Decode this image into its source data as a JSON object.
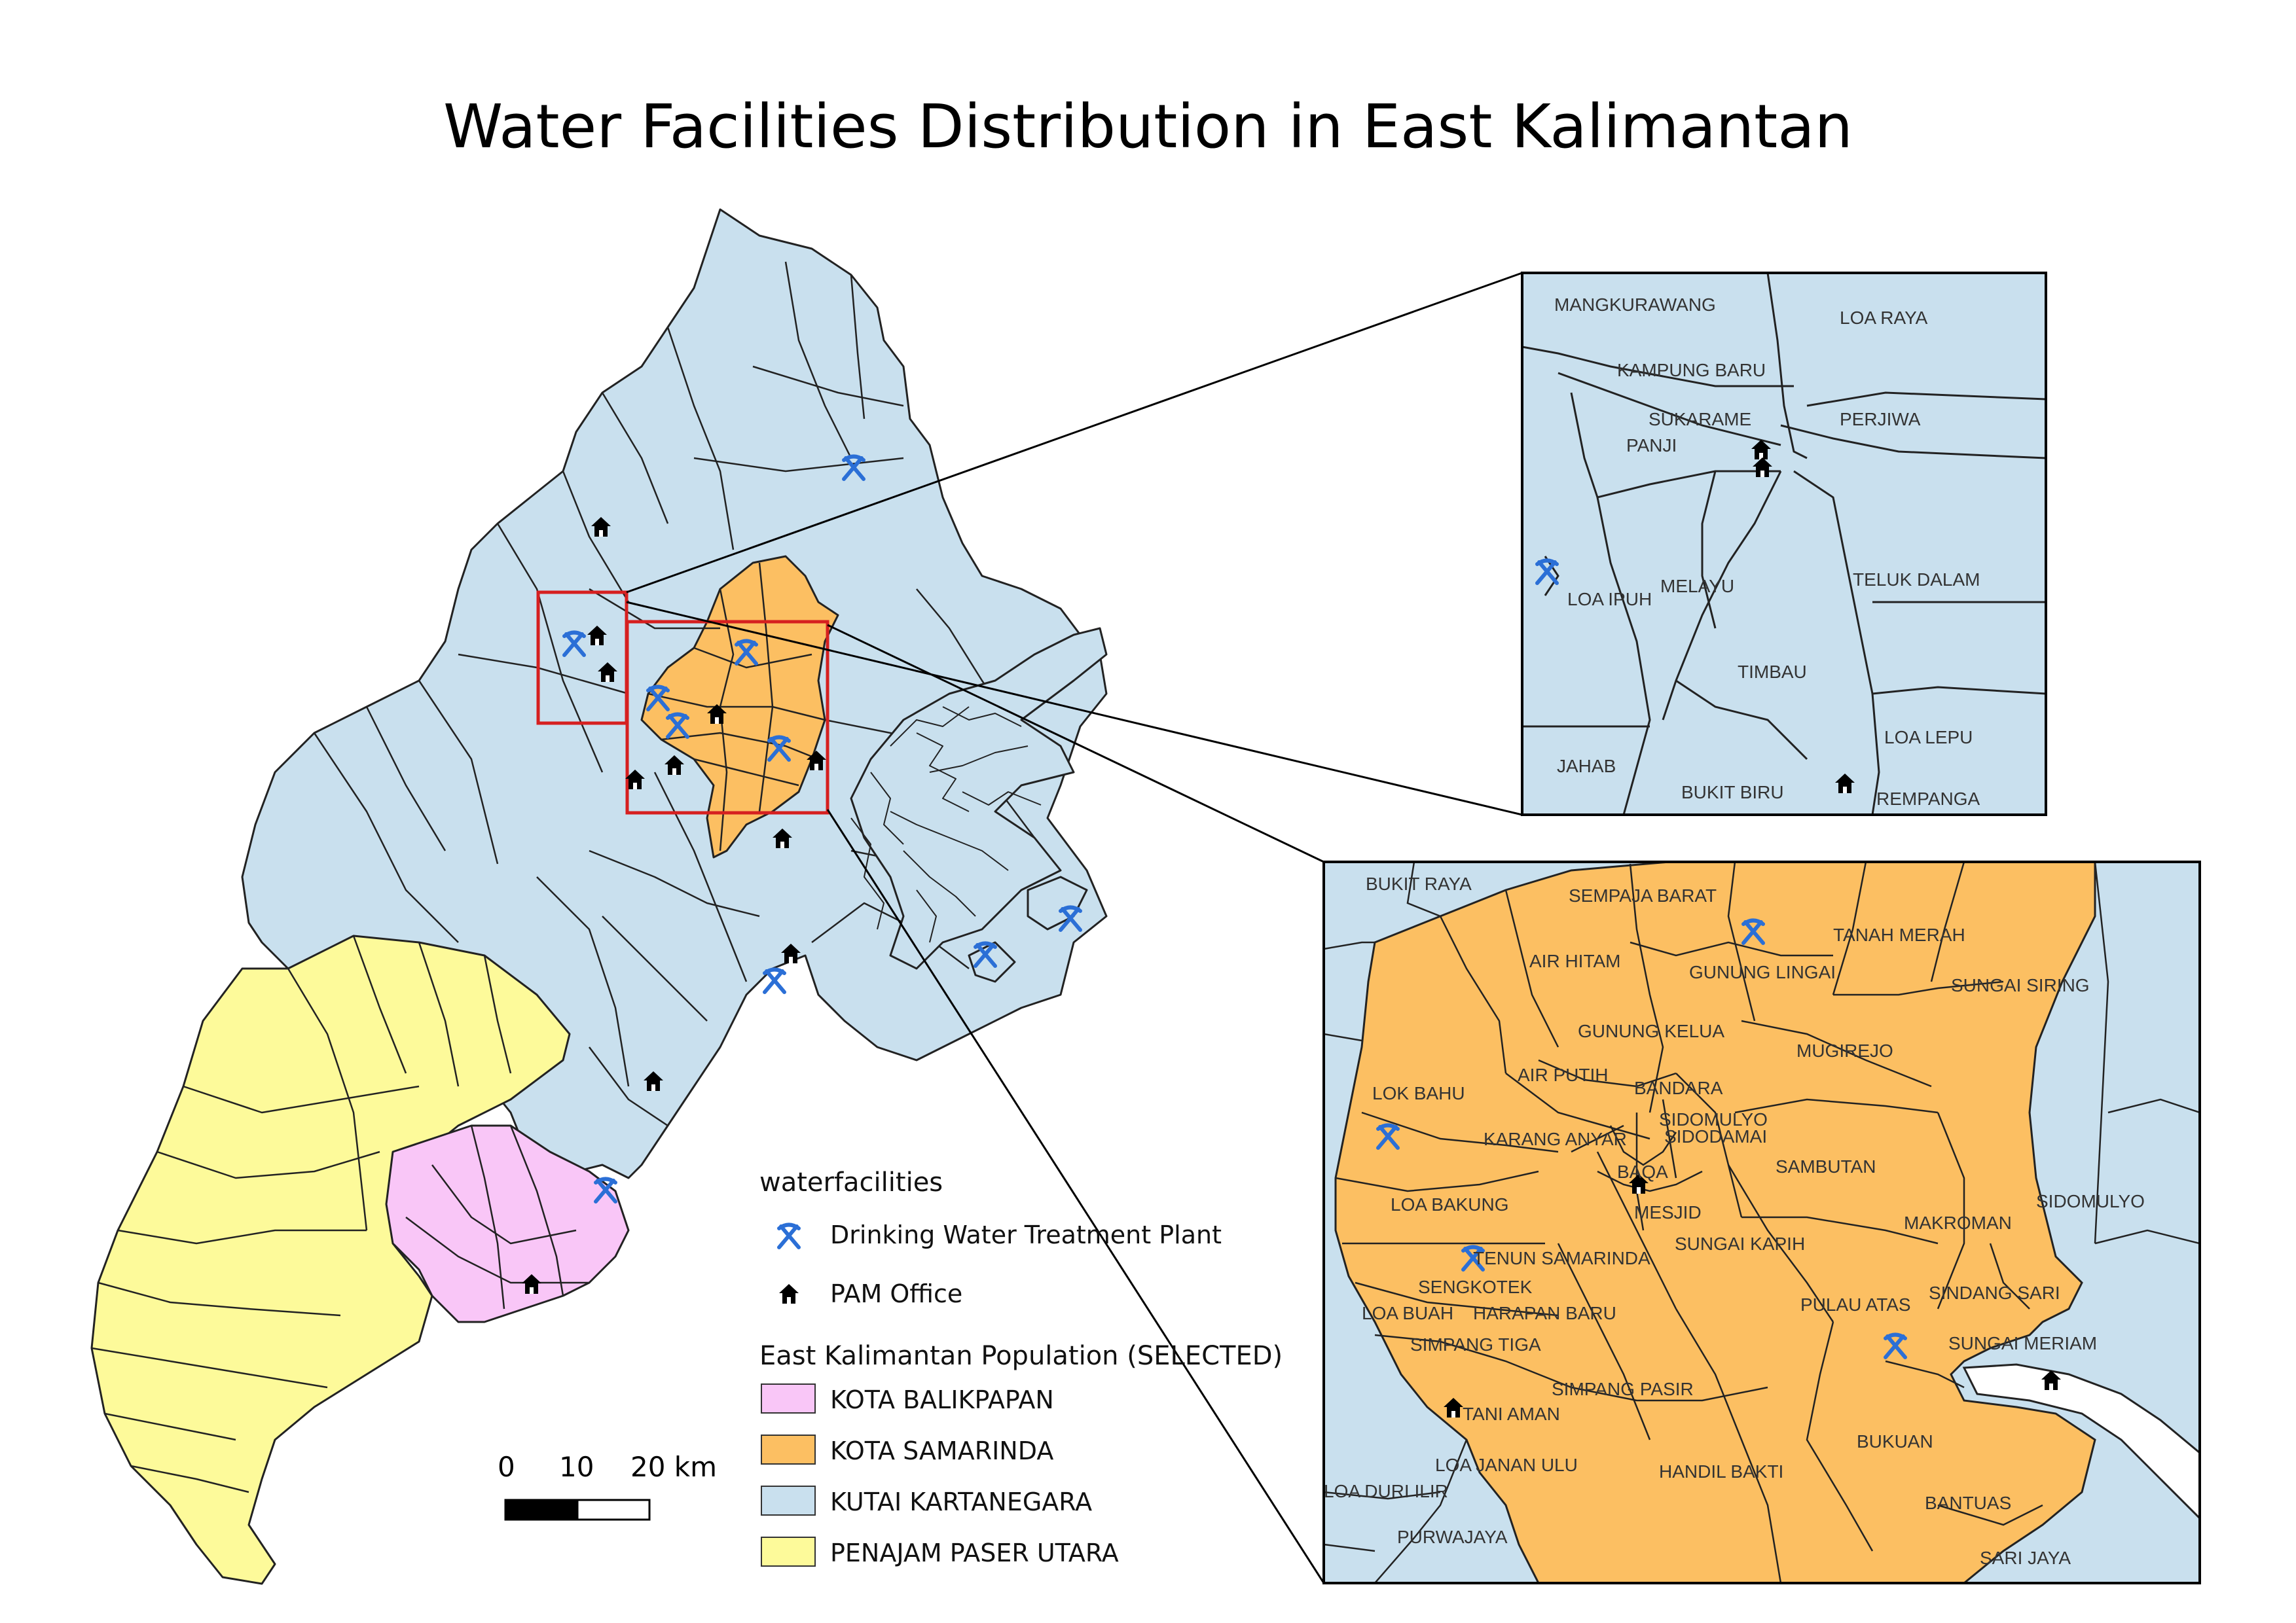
{
  "title": "Water Facilities Distribution in East Kalimantan",
  "colors": {
    "kota_balikpapan": "#f9c6f7",
    "kota_samarinda": "#fcbf62",
    "kutai_kartanegara": "#c9e0ee",
    "penajam_paser_utara": "#fdfa9a",
    "facility_icon": "#2b6fd6",
    "inset_frame": "#d62020"
  },
  "legend": {
    "facilities_heading": "waterfacilities",
    "treatment_plant": "Drinking Water Treatment Plant",
    "pam_office": "PAM Office",
    "population_heading": "East Kalimantan Population (SELECTED)",
    "classes": [
      "KOTA BALIKPAPAN",
      "KOTA SAMARINDA",
      "KUTAI KARTANEGARA",
      "PENAJAM PASER UTARA"
    ]
  },
  "scale_bar": {
    "labels": [
      "0",
      "10",
      "20 km"
    ]
  },
  "inset_north": {
    "labels": [
      "MANGKURAWANG",
      "LOA RAYA",
      "KAMPUNG BARU",
      "SUKARAME",
      "PERJIWA",
      "PANJI",
      "LOA IPUH",
      "MELAYU",
      "TELUK DALAM",
      "TIMBAU",
      "LOA LEPU",
      "JAHAB",
      "BUKIT BIRU",
      "REMPANGA"
    ]
  },
  "inset_samarinda": {
    "labels": [
      "BUKIT RAYA",
      "SEMPAJA BARAT",
      "TANAH MERAH",
      "AIR HITAM",
      "GUNUNG LINGAI",
      "SUNGAI SIRING",
      "GUNUNG KELUA",
      "MUGIREJO",
      "LOK BAHU",
      "AIR PUTIH",
      "BANDARA",
      "SIDOMULYO",
      "SIDODAMAI",
      "KARANG ANYAR",
      "SAMBUTAN",
      "BAQA",
      "SIDOMULYO",
      "LOA BAKUNG",
      "MESJID",
      "MAKROMAN",
      "SUNGAI KAPIH",
      "TENUN SAMARINDA",
      "SENGKOTEK",
      "PULAU ATAS",
      "SINDANG SARI",
      "LOA BUAH",
      "HARAPAN BARU",
      "SUNGAI MERIAM",
      "SIMPANG TIGA",
      "SIMPANG PASIR",
      "TANI AMAN",
      "BUKUAN",
      "LOA JANAN ULU",
      "HANDIL BAKTI",
      "LOA DURI ILIR",
      "BANTUAS",
      "PURWAJAYA",
      "SARI JAYA"
    ]
  },
  "icons": [
    "pickaxe-icon",
    "house-icon"
  ]
}
